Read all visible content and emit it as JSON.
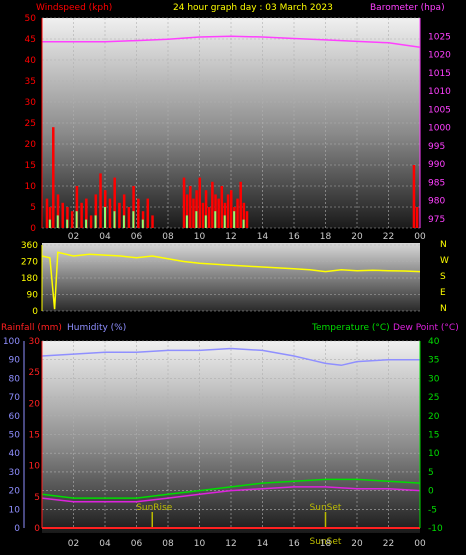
{
  "header": {
    "wind_label": "Windspeed (kph)",
    "title": "24 hour graph day : 03 March 2023",
    "baro_label": "Barometer (hpa)"
  },
  "colors": {
    "background": "#000000",
    "wind_gust": "#ff0000",
    "wind_avg": "#90ff70",
    "barometer": "#ff40ff",
    "direction": "#ffff00",
    "humidity": "#8f8fff",
    "temperature": "#00dd00",
    "dewpoint": "#dd22dd",
    "rainfall": "#ff2020",
    "sun_marker": "#bbbb00"
  },
  "bottom_header": {
    "rain_label": "Rainfall (mm)",
    "humidity_label": "Humidity (%)",
    "temp_label": "Temperature (°C)",
    "dew_label": "Dew Point (°C)"
  },
  "compass": [
    "N",
    "W",
    "S",
    "E",
    "N"
  ],
  "sun": {
    "rise_label": "SunRise",
    "set_label": "SunSet",
    "rise_hour": 7,
    "set_hour": 18
  },
  "chart_data": [
    {
      "type": "bar",
      "x_ticks": [
        "02",
        "04",
        "06",
        "08",
        "10",
        "12",
        "14",
        "16",
        "18",
        "20",
        "22",
        "00"
      ],
      "xlim": [
        0,
        24
      ],
      "y_left": {
        "ticks": [
          0,
          5,
          10,
          15,
          20,
          25,
          30,
          35,
          40,
          45,
          50
        ],
        "ylim": [
          0,
          50
        ]
      },
      "y_right": {
        "ticks": [
          975,
          980,
          985,
          990,
          995,
          1000,
          1005,
          1010,
          1015,
          1020,
          1025
        ],
        "ylim": [
          972.5,
          1030
        ]
      },
      "series": [
        {
          "name": "Windspeed (kph)",
          "type": "bar",
          "hours": [
            0.3,
            0.5,
            0.7,
            1.0,
            1.3,
            1.6,
            1.9,
            2.2,
            2.5,
            2.8,
            3.1,
            3.4,
            3.7,
            4.0,
            4.3,
            4.6,
            4.9,
            5.2,
            5.5,
            5.8,
            6.1,
            6.4,
            6.7,
            7.0,
            9.0,
            9.2,
            9.4,
            9.6,
            9.8,
            10.0,
            10.2,
            10.4,
            10.6,
            10.8,
            11.0,
            11.2,
            11.4,
            11.6,
            11.8,
            12.0,
            12.2,
            12.4,
            12.6,
            12.8,
            13.0,
            23.6,
            23.8
          ],
          "values": [
            7,
            5,
            24,
            8,
            6,
            5,
            4,
            10,
            6,
            7,
            3,
            8,
            13,
            9,
            7,
            12,
            6,
            8,
            5,
            10,
            7,
            4,
            7,
            3,
            12,
            8,
            10,
            7,
            9,
            12,
            6,
            9,
            5,
            11,
            8,
            7,
            10,
            6,
            8,
            9,
            5,
            7,
            11,
            6,
            4,
            15,
            5
          ]
        },
        {
          "name": "Windspeed average",
          "type": "bar",
          "hours": [
            0.5,
            1.0,
            1.6,
            2.2,
            2.8,
            3.4,
            4.0,
            4.6,
            5.2,
            5.8,
            6.4,
            9.2,
            9.8,
            10.4,
            11.0,
            11.6,
            12.2,
            12.8
          ],
          "values": [
            2,
            3,
            2,
            4,
            2,
            3,
            5,
            4,
            3,
            4,
            2,
            3,
            4,
            3,
            4,
            3,
            4,
            2
          ]
        },
        {
          "name": "Barometer (hpa)",
          "type": "line",
          "hours": [
            0,
            2,
            4,
            6,
            8,
            10,
            12,
            14,
            16,
            18,
            20,
            22,
            24
          ],
          "values": [
            1023.5,
            1023.5,
            1023.5,
            1023.8,
            1024.2,
            1024.8,
            1025,
            1024.8,
            1024.4,
            1024,
            1023.6,
            1023.2,
            1022
          ]
        }
      ]
    },
    {
      "type": "line",
      "y_ticks": [
        0,
        90,
        180,
        270,
        360
      ],
      "ylim": [
        0,
        360
      ],
      "xlim": [
        0,
        24
      ],
      "series": [
        {
          "name": "Wind direction",
          "hours": [
            0,
            0.5,
            0.8,
            1,
            2,
            3,
            4,
            5,
            6,
            7,
            8,
            9,
            10,
            11,
            12,
            13,
            14,
            15,
            16,
            17,
            18,
            19,
            20,
            21,
            22,
            23,
            24
          ],
          "values": [
            300,
            290,
            10,
            320,
            300,
            310,
            305,
            300,
            290,
            300,
            285,
            270,
            260,
            255,
            250,
            245,
            240,
            235,
            230,
            225,
            215,
            225,
            220,
            222,
            220,
            218,
            215
          ]
        }
      ]
    },
    {
      "type": "line",
      "x_ticks": [
        "02",
        "04",
        "06",
        "08",
        "10",
        "12",
        "14",
        "16",
        "18",
        "20",
        "22",
        "00"
      ],
      "xlim": [
        0,
        24
      ],
      "y_humidity": {
        "ticks": [
          0,
          10,
          20,
          30,
          40,
          50,
          60,
          70,
          80,
          90,
          100
        ],
        "ylim": [
          0,
          100
        ]
      },
      "y_rain": {
        "ticks": [
          0,
          5,
          10,
          15,
          20,
          25,
          30
        ],
        "ylim": [
          0,
          30
        ]
      },
      "y_temp": {
        "ticks": [
          -10,
          -5,
          0,
          5,
          10,
          15,
          20,
          25,
          30,
          35,
          40
        ],
        "ylim": [
          -10,
          40
        ]
      },
      "series": [
        {
          "name": "Humidity (%)",
          "hours": [
            0,
            2,
            4,
            6,
            8,
            10,
            12,
            14,
            16,
            17,
            18,
            19,
            20,
            22,
            24
          ],
          "values": [
            92,
            93,
            94,
            94,
            95,
            95,
            96,
            95,
            92,
            90,
            88,
            87,
            89,
            90,
            90
          ]
        },
        {
          "name": "Temperature (°C)",
          "hours": [
            0,
            2,
            4,
            6,
            8,
            10,
            12,
            14,
            16,
            18,
            20,
            22,
            24
          ],
          "values": [
            -1,
            -2,
            -2,
            -2,
            -1,
            0,
            1,
            2,
            2.5,
            3,
            3,
            2.5,
            2
          ]
        },
        {
          "name": "Dew Point (°C)",
          "hours": [
            0,
            2,
            4,
            6,
            8,
            10,
            12,
            14,
            16,
            18,
            20,
            22,
            24
          ],
          "values": [
            -2,
            -3,
            -3,
            -3,
            -2,
            -1,
            0,
            0.5,
            1,
            1,
            0.5,
            0.5,
            0
          ]
        },
        {
          "name": "Rainfall (mm)",
          "hours": [
            0,
            24
          ],
          "values": [
            0,
            0
          ]
        }
      ]
    }
  ]
}
